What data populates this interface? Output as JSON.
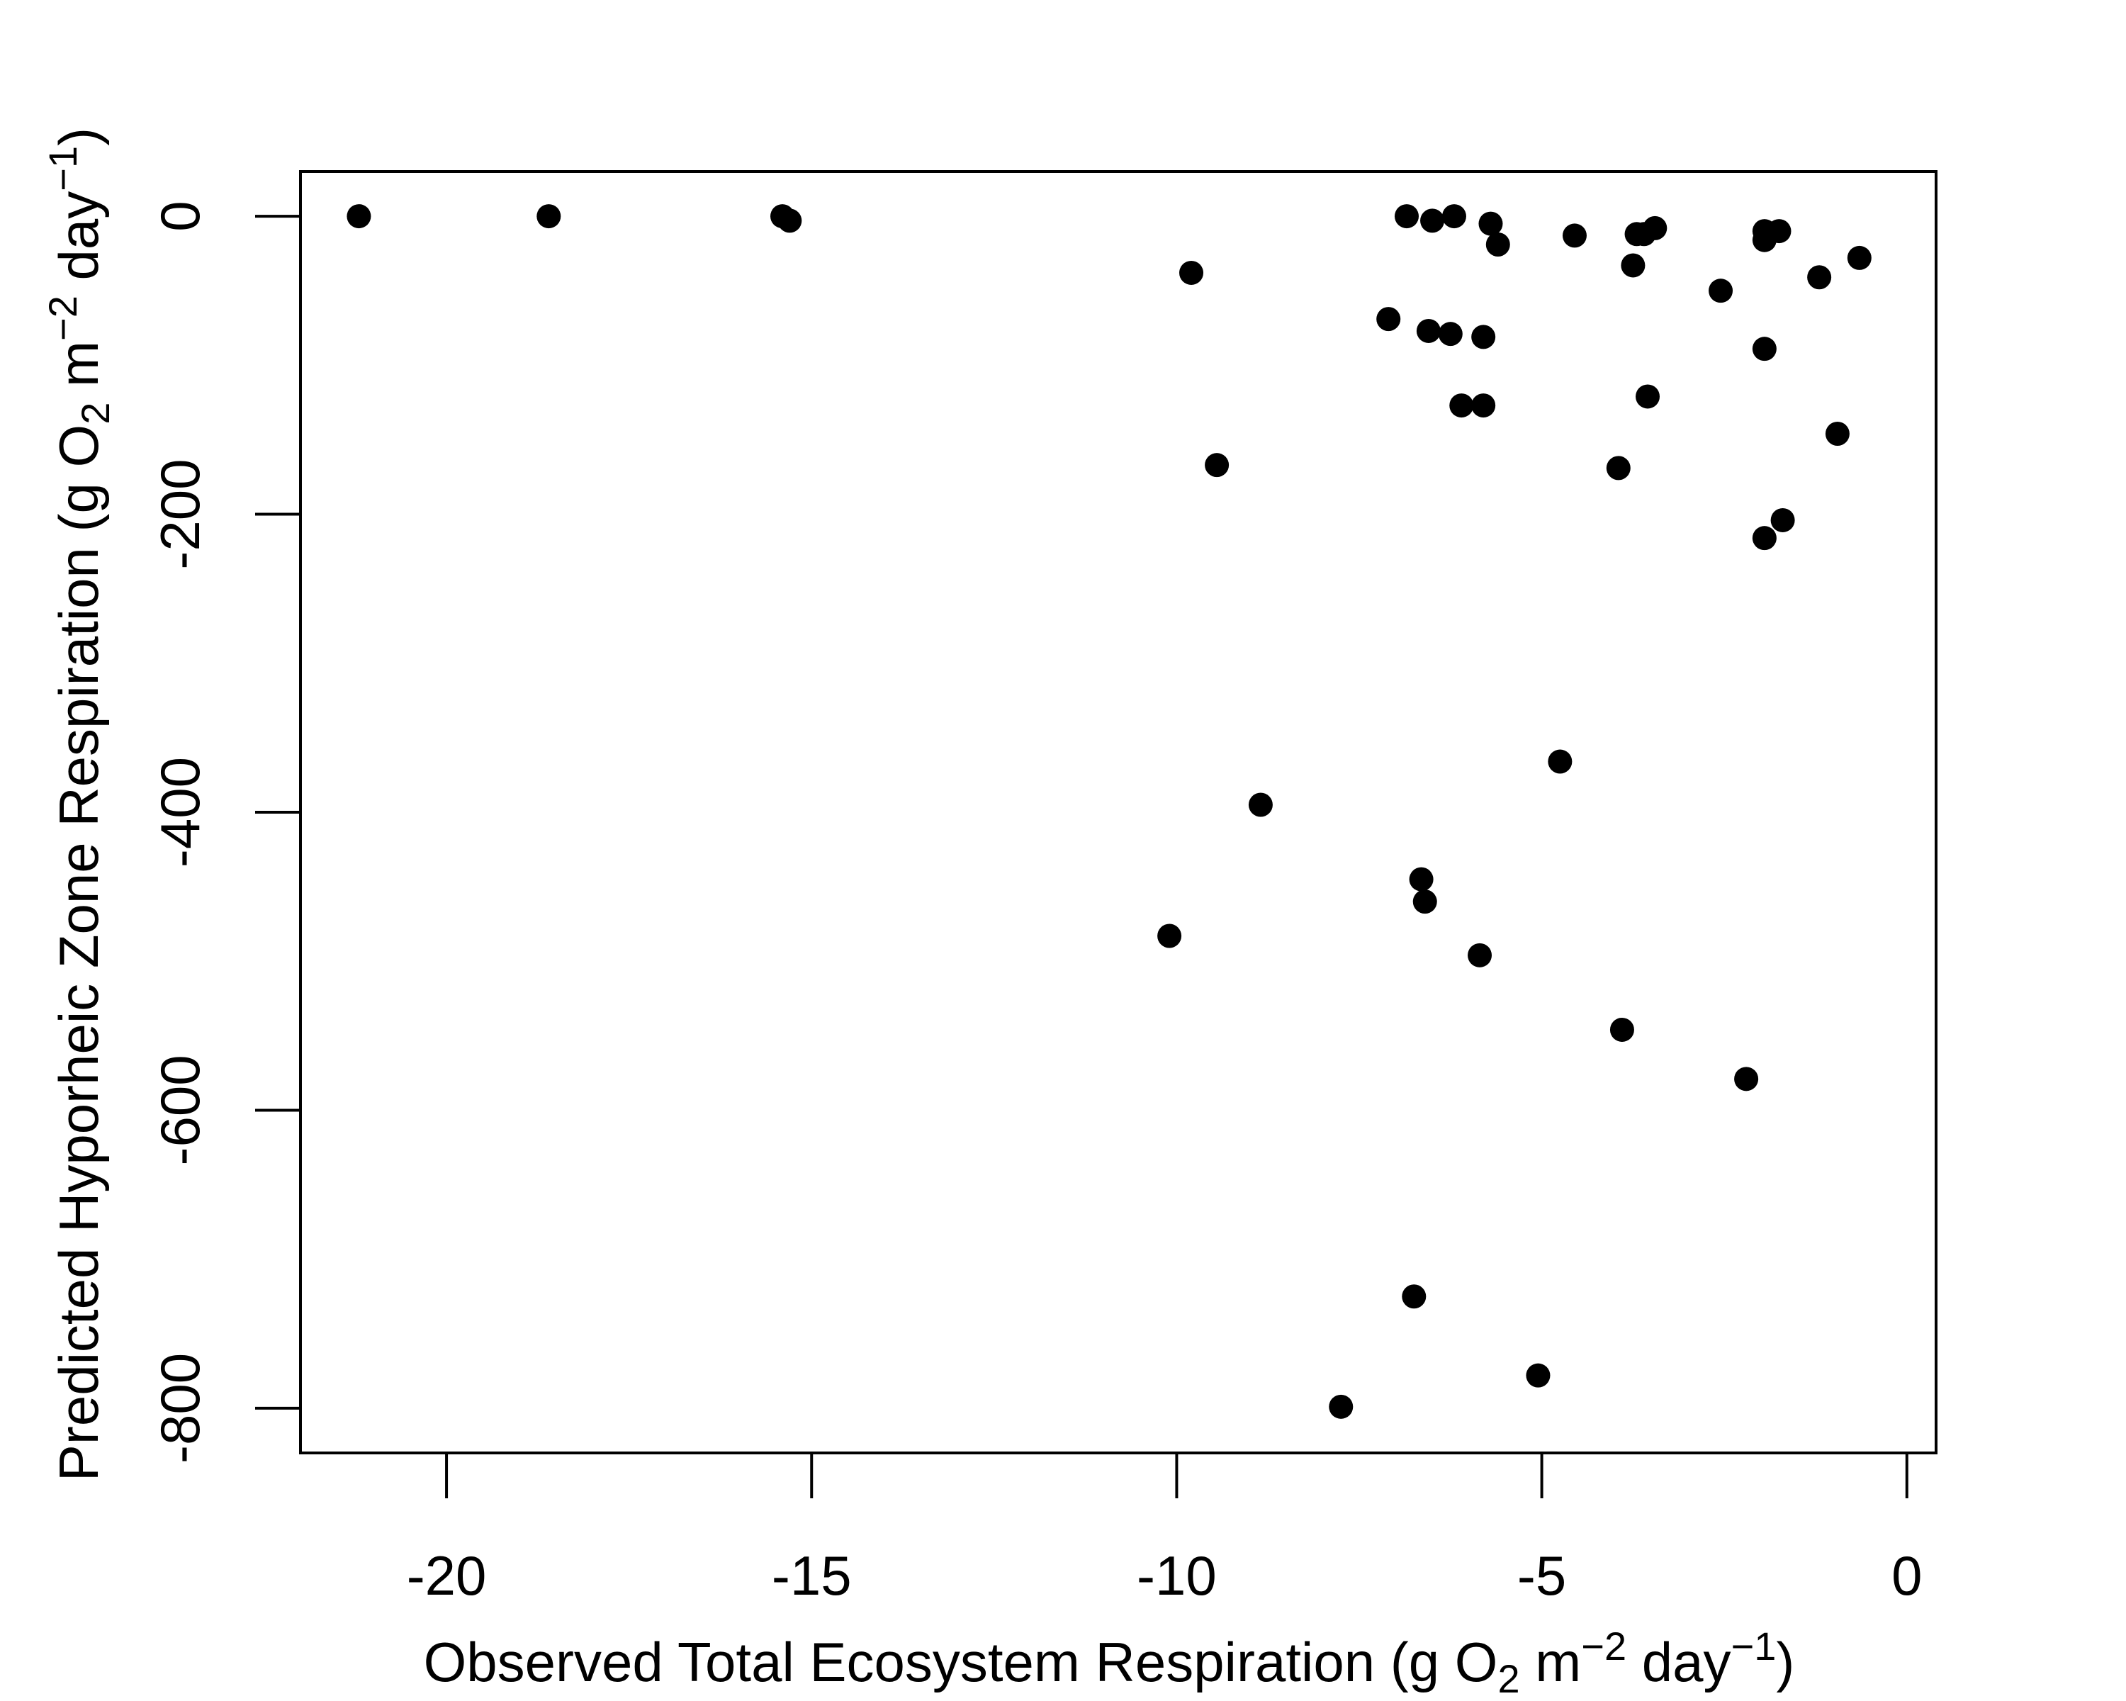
{
  "chart_data": {
    "type": "scatter",
    "xlabel": {
      "text_before_sub": "Observed Total Ecosystem Respiration (g O",
      "sub": "2",
      "text_m": " m",
      "sup1": "−2",
      "text_day": " day",
      "sup2": "−1",
      "text_end": ")"
    },
    "ylabel": {
      "text_before_sub": "Predicted Hyporheic Zone Respiration  (g O",
      "sub": "2",
      "text_m": " m",
      "sup1": "−2",
      "text_day": " day",
      "sup2": "−1",
      "text_end": ")"
    },
    "xlim": [
      -22,
      0.4
    ],
    "ylim": [
      -830,
      30
    ],
    "xticks": [
      -20,
      -15,
      -10,
      -5,
      0
    ],
    "xtick_labels": [
      "-20",
      "-15",
      "-10",
      "-5",
      "0"
    ],
    "yticks": [
      0,
      -200,
      -400,
      -600,
      -800
    ],
    "ytick_labels": [
      "0",
      "-200",
      "-400",
      "-600",
      "-800"
    ],
    "grid": false,
    "marker_color": "#000000",
    "points": [
      {
        "x": -21.2,
        "y": 0
      },
      {
        "x": -18.6,
        "y": 0
      },
      {
        "x": -15.4,
        "y": 0
      },
      {
        "x": -15.3,
        "y": -3
      },
      {
        "x": -9.8,
        "y": -38
      },
      {
        "x": -9.45,
        "y": -167
      },
      {
        "x": -8.85,
        "y": -395
      },
      {
        "x": -10.1,
        "y": -483
      },
      {
        "x": -7.75,
        "y": -799
      },
      {
        "x": -7.1,
        "y": -69
      },
      {
        "x": -6.85,
        "y": 0
      },
      {
        "x": -6.75,
        "y": -725
      },
      {
        "x": -6.65,
        "y": -445
      },
      {
        "x": -6.6,
        "y": -460
      },
      {
        "x": -6.55,
        "y": -77
      },
      {
        "x": -6.5,
        "y": -3
      },
      {
        "x": -6.25,
        "y": -79
      },
      {
        "x": -6.2,
        "y": 0
      },
      {
        "x": -6.1,
        "y": -127
      },
      {
        "x": -5.85,
        "y": -496
      },
      {
        "x": -5.8,
        "y": -81
      },
      {
        "x": -5.8,
        "y": -127
      },
      {
        "x": -5.7,
        "y": -5
      },
      {
        "x": -5.6,
        "y": -19
      },
      {
        "x": -5.05,
        "y": -778
      },
      {
        "x": -4.75,
        "y": -366
      },
      {
        "x": -4.55,
        "y": -13
      },
      {
        "x": -3.95,
        "y": -169
      },
      {
        "x": -3.9,
        "y": -546
      },
      {
        "x": -3.75,
        "y": -33
      },
      {
        "x": -3.7,
        "y": -12
      },
      {
        "x": -3.6,
        "y": -12
      },
      {
        "x": -3.55,
        "y": -121
      },
      {
        "x": -3.45,
        "y": -8
      },
      {
        "x": -2.55,
        "y": -50
      },
      {
        "x": -2.2,
        "y": -579
      },
      {
        "x": -1.95,
        "y": -216
      },
      {
        "x": -1.95,
        "y": -89
      },
      {
        "x": -1.95,
        "y": -16
      },
      {
        "x": -1.95,
        "y": -10
      },
      {
        "x": -1.75,
        "y": -10
      },
      {
        "x": -1.7,
        "y": -204
      },
      {
        "x": -1.2,
        "y": -41
      },
      {
        "x": -0.95,
        "y": -146
      },
      {
        "x": -0.65,
        "y": -28
      }
    ]
  }
}
